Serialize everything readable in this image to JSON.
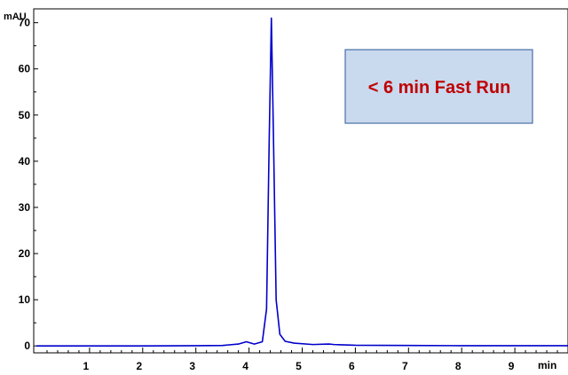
{
  "chart_data": {
    "type": "line",
    "y_unit": "mAU",
    "x_unit": "min",
    "xlim": [
      -0.05,
      10.0
    ],
    "ylim": [
      -1.5,
      73
    ],
    "x_ticks": [
      1,
      2,
      3,
      4,
      5,
      6,
      7,
      8,
      9
    ],
    "y_ticks": [
      0,
      10,
      20,
      30,
      40,
      50,
      60,
      70
    ],
    "grid": false,
    "series": [
      {
        "color": "#0000cc",
        "x": [
          0.0,
          1.0,
          2.0,
          3.0,
          3.5,
          3.8,
          3.95,
          4.1,
          4.25,
          4.33,
          4.38,
          4.42,
          4.46,
          4.51,
          4.58,
          4.68,
          4.85,
          5.2,
          5.5,
          5.6,
          6.0,
          7.0,
          8.0,
          9.0,
          10.0
        ],
        "y": [
          0,
          0,
          0,
          0.05,
          0.1,
          0.4,
          0.9,
          0.4,
          0.9,
          8,
          45,
          71,
          45,
          10,
          2.5,
          1.0,
          0.6,
          0.3,
          0.4,
          0.3,
          0.15,
          0.1,
          0.05,
          0.05,
          0.05
        ]
      }
    ],
    "annotation": {
      "text": "< 6 min Fast Run",
      "text_color": "#c00000",
      "fill_color": "#c9d9ee",
      "border_color": "#4a6fa5"
    }
  }
}
